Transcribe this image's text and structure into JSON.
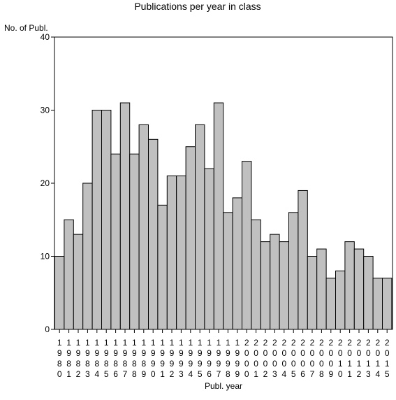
{
  "chart_data": {
    "type": "bar",
    "title": "Publications per year in class",
    "ylabel": "No. of Publ.",
    "xlabel": "Publ. year",
    "ylim": [
      0,
      40
    ],
    "yticks": [
      0,
      10,
      20,
      30,
      40
    ],
    "grid": false,
    "bar_color": "#c0c0c0",
    "categories": [
      "1980",
      "1981",
      "1982",
      "1983",
      "1984",
      "1985",
      "1986",
      "1987",
      "1988",
      "1989",
      "1990",
      "1991",
      "1992",
      "1993",
      "1994",
      "1995",
      "1996",
      "1997",
      "1998",
      "1999",
      "2000",
      "2001",
      "2002",
      "2003",
      "2004",
      "2005",
      "2006",
      "2007",
      "2008",
      "2009",
      "2010",
      "2011",
      "2012",
      "2013",
      "2014",
      "2015"
    ],
    "values": [
      10,
      15,
      13,
      20,
      30,
      30,
      24,
      31,
      24,
      28,
      26,
      17,
      21,
      21,
      25,
      28,
      22,
      31,
      16,
      18,
      23,
      15,
      12,
      13,
      12,
      16,
      19,
      10,
      11,
      7,
      8,
      12,
      11,
      10,
      7,
      7
    ]
  }
}
